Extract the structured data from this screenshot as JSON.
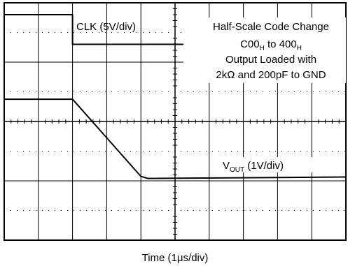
{
  "chart_data": {
    "type": "line",
    "xlabel": "Time (1μs/div)",
    "grid": true,
    "divisions": {
      "x": 10,
      "y": 8
    },
    "annotation": {
      "line1": "Half-Scale Code Change",
      "line2_main1": "C00",
      "line2_sub1": "H",
      "line2_mid": " to 400",
      "line2_sub2": "H",
      "line3": "Output Loaded with",
      "line4": "2kΩ and 200pF to GND"
    },
    "series": [
      {
        "name": "CLK (5V/div)",
        "color": "#000000",
        "points": [
          [
            0,
            7.6
          ],
          [
            2.0,
            7.6
          ],
          [
            2.0,
            6.6
          ],
          [
            10,
            6.6
          ]
        ]
      },
      {
        "name_main": "V",
        "name_sub": "OUT",
        "name_rest": " (1V/div)",
        "color": "#000000",
        "points": [
          [
            0,
            4.75
          ],
          [
            2.0,
            4.75
          ],
          [
            3.0,
            3.45
          ],
          [
            4.0,
            2.15
          ],
          [
            4.2,
            2.08
          ],
          [
            10,
            2.13
          ]
        ]
      }
    ]
  }
}
